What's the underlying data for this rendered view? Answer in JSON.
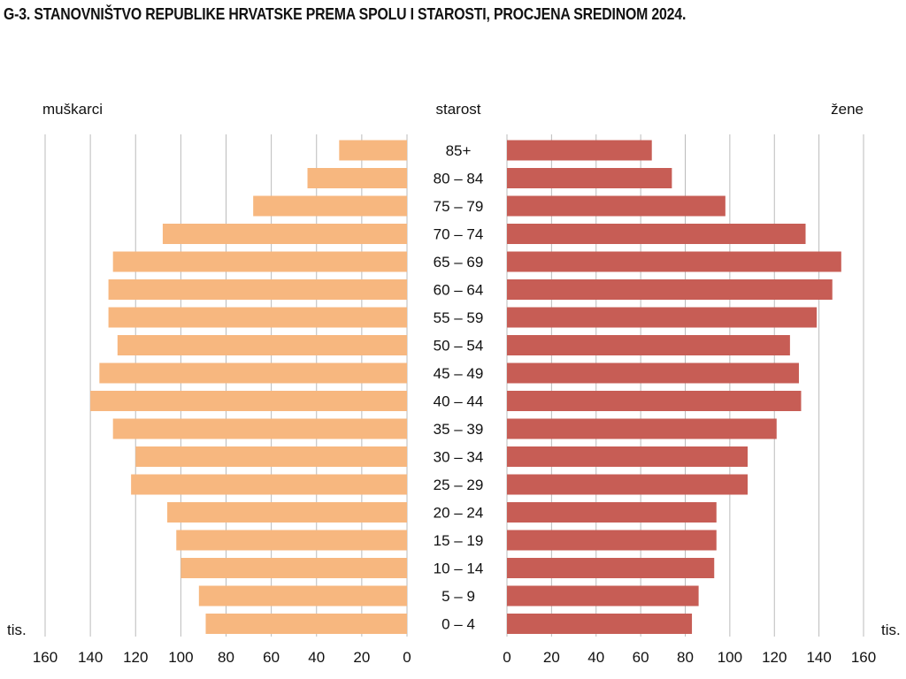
{
  "title": "G-3. STANOVNIŠTVO REPUBLIKE HRVATSKE PREMA SPOLU I STAROSTI, PROCJENA SREDINOM 2024.",
  "chart_data": {
    "type": "bar",
    "subtype": "population-pyramid",
    "title": "G-3. STANOVNIŠTVO REPUBLIKE HRVATSKE PREMA SPOLU I STAROSTI, PROCJENA SREDINOM 2024.",
    "category_label": "starost",
    "unit_label": "tis.",
    "categories": [
      "85+",
      "80 – 84",
      "75 – 79",
      "70 – 74",
      "65 – 69",
      "60 – 64",
      "55 – 59",
      "50 – 54",
      "45 – 49",
      "40 – 44",
      "35 – 39",
      "30 – 34",
      "25 – 29",
      "20 – 24",
      "15 – 19",
      "10 – 14",
      "5 – 9",
      "0 – 4"
    ],
    "series": [
      {
        "name": "muškarci",
        "color": "#f7b77f",
        "values": [
          30,
          44,
          68,
          108,
          130,
          132,
          132,
          128,
          136,
          140,
          130,
          120,
          122,
          106,
          102,
          100,
          92,
          89
        ]
      },
      {
        "name": "žene",
        "color": "#c75d55",
        "values": [
          65,
          74,
          98,
          134,
          150,
          146,
          139,
          127,
          131,
          132,
          121,
          108,
          108,
          94,
          94,
          93,
          86,
          83
        ]
      }
    ],
    "xlim": [
      0,
      160
    ],
    "xticks": [
      0,
      20,
      40,
      60,
      80,
      100,
      120,
      140,
      160
    ],
    "left_ticks": [
      "160",
      "140",
      "120",
      "100",
      "80",
      "60",
      "40",
      "20",
      "0"
    ],
    "right_ticks": [
      "0",
      "20",
      "40",
      "60",
      "80",
      "100",
      "120",
      "140",
      "160"
    ],
    "grid": true,
    "grid_color": "#bbbbbb"
  }
}
